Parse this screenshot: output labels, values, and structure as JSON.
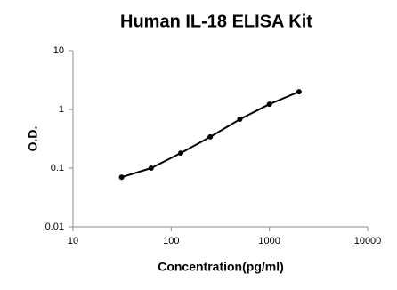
{
  "chart_data": {
    "type": "line",
    "title": "Human IL-18 ELISA Kit",
    "x_label": "Concentration(pg/ml)",
    "y_label": "O.D.",
    "x": [
      31.25,
      62.5,
      125,
      250,
      500,
      1000,
      2000
    ],
    "series": [
      {
        "color": "#000000",
        "values": [
          0.07,
          0.1,
          0.18,
          0.34,
          0.68,
          1.23,
          2.0
        ]
      }
    ],
    "markers": true,
    "xscale": "log",
    "yscale": "log",
    "xlim": [
      10,
      10000
    ],
    "xticks": [
      10,
      100,
      1000,
      10000
    ],
    "ylim": [
      0.01,
      10
    ],
    "yticks": [
      0.01,
      0.1,
      1,
      10
    ],
    "grid": false
  }
}
